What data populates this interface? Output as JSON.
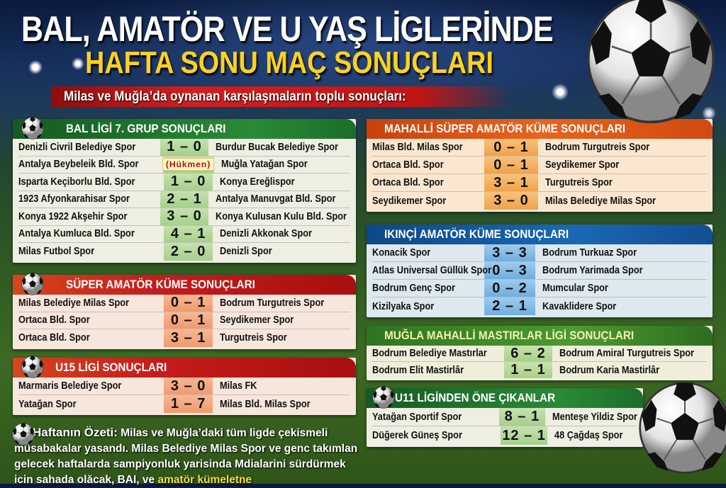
{
  "header": {
    "title_line1": "BAL, AMATÖR VE U YAŞ LİGLERİNDE",
    "title_line2": "HAFTA SONU MAÇ SONUÇLARI",
    "subtitle": "Milas ve Muğla’da oynanan karşılaşmaların toplu sonuçları:"
  },
  "colors": {
    "title": "#ffffff",
    "title_accent": "#ffd21c",
    "subtitle_bar": "#c01515",
    "green": "#1f7a2e",
    "red": "#c81c1c",
    "orange": "#e0601a",
    "blue": "#1a5fa8"
  },
  "panels": [
    {
      "id": "bal",
      "title": "BAL LİGİ 7. GRUP SONUÇLARI",
      "theme": "green",
      "icon": "football-icon",
      "matches": [
        {
          "home": "Denizli Civril Belediye Spor",
          "score": "1 – 0",
          "away": "Burdur Bucak Belediye Spor"
        },
        {
          "home": "Antalya Beybeleik Bld. Spor",
          "score": "(Hükmen)",
          "away": "Muğla Yatağan Spor"
        },
        {
          "home": "Isparta Keçiborlu Bld. Spor",
          "score": "1 – 0",
          "away": "Konya Ereğlispor"
        },
        {
          "home": "1923 Afyonkarahisar Spor",
          "score": "2 – 1",
          "away": "Antalya Manuvgat Bld. Spor"
        },
        {
          "home": "Konya 1922 Akşehir Spor",
          "score": "3 – 0",
          "away": "Konya Kulusan Kulu Bld. Spor"
        },
        {
          "home": "Antalya Kumluca Bld. Spor",
          "score": "4 – 1",
          "away": "Denizli Akkonak Spor"
        },
        {
          "home": "Milas Futbol Spor",
          "score": "2 – 0",
          "away": "Denizli Spor"
        }
      ]
    },
    {
      "id": "super",
      "title": "SÜPER AMATÖR KÜME SONUÇLARI",
      "theme": "red",
      "icon": "football-icon",
      "matches": [
        {
          "home": "Milas Belediye Milas Spor",
          "score": "0 – 1",
          "away": "Bodrum Turgutreis Spor"
        },
        {
          "home": "Ortaca Bld. Spor",
          "score": "0 – 1",
          "away": "Seydikemer Spor"
        },
        {
          "home": "Ortaca Bld. Spor",
          "score": "3 – 1",
          "away": "Turgutreis Spor"
        }
      ]
    },
    {
      "id": "u15",
      "title": "U15 LİGİ SONUÇLARI",
      "theme": "red",
      "icon": "football-icon",
      "matches": [
        {
          "home": "Marmaris Belediye Spor",
          "score": "3 – 0",
          "away": "Milas FK"
        },
        {
          "home": "Yatağan Spor",
          "score": "1 – 7",
          "away": "Milas Bld. Milas Spor"
        }
      ]
    },
    {
      "id": "mahalli",
      "title": "MAHALLİ SÜPER AMATÖR KÜME SONUÇLARI",
      "theme": "orange",
      "matches": [
        {
          "home": "Milas Bld. Milas Spor",
          "score": "0 – 1",
          "away": "Bodrum Turgutreis Spor"
        },
        {
          "home": "Ortaca Bld. Spor",
          "score": "0 – 1",
          "away": "Seydikemer Spor"
        },
        {
          "home": "Ortaca Bld. Spor",
          "score": "3 – 1",
          "away": "Turgutreis Spor"
        },
        {
          "home": "Seydikemer Spor",
          "score": "3 – 0",
          "away": "Milas Belediye Milas Spor"
        }
      ]
    },
    {
      "id": "ikinci",
      "title": "IKINÇİ AMATÖR KÜME SONUÇLARI",
      "theme": "blue",
      "matches": [
        {
          "home": "Konacik Spor",
          "score": "3 – 3",
          "away": "Bodrum Turkuaz Spor"
        },
        {
          "home": "Atlas Universal Güllük Spor",
          "score": "0 – 3",
          "away": "Bodrum Yarimada Spor"
        },
        {
          "home": "Bodrum Genç Spor",
          "score": "0 – 2",
          "away": "Mumcular Spor"
        },
        {
          "home": "Kizilyaka Spor",
          "score": "2 – 1",
          "away": "Kavaklidere Spor"
        }
      ]
    },
    {
      "id": "mugla",
      "title": "MUĞLA MAHALLİ MASTIRLAR LİGİ SONUÇLARI",
      "theme": "lime",
      "matches": [
        {
          "home": "Bodrum Belediye Mastırlar",
          "score": "6 – 2",
          "away": "Bodrum Amiral Turgutreis Spor"
        },
        {
          "home": "Bodrum Elit Mastirlâr",
          "score": "1 – 1",
          "away": "Bodrum Karia Mastirlâr"
        }
      ]
    },
    {
      "id": "u11",
      "title": "U11 LİGİNDEN ÖNE ÇIKANLAR",
      "theme": "green",
      "icon": "football-icon",
      "matches": [
        {
          "home": "Yatağan Sportif Spor",
          "score": "8 – 1",
          "away": "Menteşe Yildiz Spor"
        },
        {
          "home": "Düğerek Güneş Spor",
          "score": "12 – 1",
          "away": "48 Çağdaş Spor"
        }
      ]
    }
  ],
  "summary": {
    "lead": "Haftanın Özeti:",
    "text": " Milas ve Muğla’daki tüm ligde çekismeli müsabakalar yasandı. Milas Belediye Milas Spor ve genc takımlan gelecek haftalarda sampiyonluk yarisinda Mdialarini sürdürmek icin sahada olăcak, BAI, ve ",
    "highlight": "amatör kümeletne"
  }
}
